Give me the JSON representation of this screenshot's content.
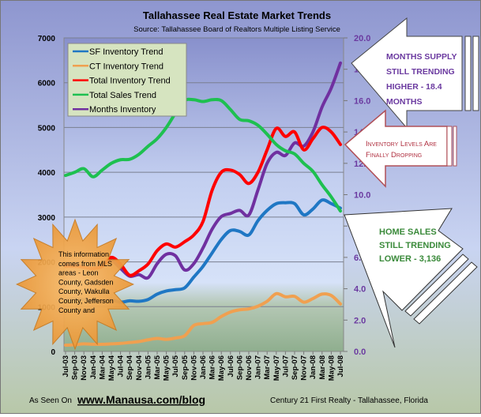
{
  "chart_data": {
    "type": "line",
    "title": "Tallahassee Real Estate Market Trends",
    "subtitle": "Source: Tallahassee Board of Realtors Multiple Listing Service",
    "categories": [
      "Jul-03",
      "Sep-03",
      "Nov-03",
      "Jan-04",
      "Mar-04",
      "May-04",
      "Jul-04",
      "Sep-04",
      "Nov-04",
      "Jan-05",
      "Mar-05",
      "May-05",
      "Jul-05",
      "Sep-05",
      "Nov-05",
      "Jan-06",
      "Mar-06",
      "May-06",
      "Jul-06",
      "Sep-06",
      "Nov-06",
      "Jan-07",
      "Mar-07",
      "May-07",
      "Jul-07",
      "Sep-07",
      "Nov-07",
      "Jan-08",
      "Mar-08",
      "May-08",
      "Jul-08"
    ],
    "y_left": {
      "range": [
        0,
        7000
      ],
      "ticks": [
        "0",
        "1000",
        "2000",
        "3000",
        "4000",
        "5000",
        "6000",
        "7000"
      ]
    },
    "y_right": {
      "range": [
        0,
        20
      ],
      "ticks": [
        "0.0",
        "2.0",
        "4.0",
        "6.0",
        "8.0",
        "10.0",
        "12.0",
        "14.0",
        "16.0",
        "18.0",
        "20.0"
      ]
    },
    "grid": true,
    "legend_position": "top-left",
    "series": [
      {
        "name": "SF Inventory Trend",
        "axis": "left",
        "color": "#1f77c4",
        "values": [
          1150,
          1180,
          1160,
          1140,
          1130,
          1150,
          1100,
          1130,
          1120,
          1160,
          1280,
          1350,
          1380,
          1420,
          1660,
          1900,
          2200,
          2500,
          2700,
          2680,
          2600,
          2920,
          3150,
          3300,
          3320,
          3300,
          3050,
          3180,
          3380,
          3300,
          3200
        ]
      },
      {
        "name": "CT Inventory Trend",
        "axis": "left",
        "color": "#f0a050",
        "values": [
          140,
          150,
          170,
          160,
          160,
          170,
          180,
          200,
          220,
          260,
          290,
          270,
          300,
          350,
          580,
          620,
          650,
          780,
          880,
          930,
          950,
          1010,
          1120,
          1290,
          1220,
          1230,
          1100,
          1180,
          1280,
          1250,
          1060
        ]
      },
      {
        "name": "Total Inventory Trend",
        "axis": "left",
        "color": "#ff0000",
        "values": [
          1900,
          1900,
          1880,
          1850,
          1900,
          2100,
          1950,
          1700,
          1800,
          1950,
          2250,
          2400,
          2330,
          2450,
          2600,
          2900,
          3600,
          4000,
          4050,
          3950,
          3750,
          4000,
          4500,
          4980,
          4800,
          4900,
          4500,
          4750,
          5000,
          4900,
          4620
        ]
      },
      {
        "name": "Total Sales Trend",
        "axis": "left",
        "color": "#1ec050",
        "values": [
          3930,
          4000,
          4080,
          3900,
          4050,
          4200,
          4280,
          4290,
          4400,
          4580,
          4750,
          5000,
          5320,
          5600,
          5620,
          5580,
          5620,
          5600,
          5400,
          5180,
          5150,
          5050,
          4850,
          4620,
          4480,
          4410,
          4200,
          4020,
          3720,
          3450,
          3136
        ]
      },
      {
        "name": "Months Inventory",
        "axis": "right",
        "color": "#7030a0",
        "values": [
          5.5,
          5.5,
          5.4,
          5.3,
          5.5,
          5.8,
          5.3,
          4.8,
          4.9,
          4.7,
          5.6,
          6.2,
          6.1,
          5.2,
          5.6,
          6.6,
          7.8,
          8.6,
          8.8,
          9.0,
          8.7,
          10.3,
          12.0,
          12.7,
          12.5,
          13.3,
          13.1,
          14.0,
          15.6,
          16.8,
          18.4
        ]
      }
    ],
    "annotations": {
      "months_supply": "MONTHS SUPPLY STILL TRENDING HIGHER - 18.4 MONTHS",
      "months_supply_lines": [
        "MONTHS SUPPLY",
        "STILL TRENDING",
        "HIGHER - 18.4",
        "MONTHS"
      ],
      "inventory_lines": [
        "Inventory  Levels Are",
        "Finally Dropping"
      ],
      "sales_lines": [
        "HOME SALES",
        "STILL TRENDING",
        "LOWER - 3,136"
      ],
      "starburst_lines": [
        "This information",
        "comes from MLS",
        "areas - Leon",
        "County, Gadsden",
        "County, Wakulla",
        "County, Jefferson",
        "County and"
      ]
    }
  },
  "footer": {
    "as_seen_on": "As Seen On",
    "url": "www.Manausa.com/blog",
    "credit": "Century 21 First Realty - Tallahassee, Florida"
  },
  "colors": {
    "months_arrow_text": "#6b3aa0",
    "inventory_arrow": "#b03040",
    "sales_arrow_text": "#3a8a3a",
    "starburst": "#f5a040"
  }
}
